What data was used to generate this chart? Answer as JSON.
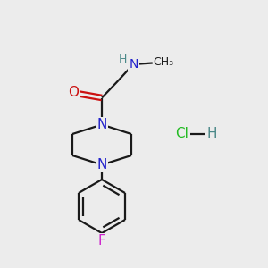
{
  "bg_color": "#ececec",
  "bond_color": "#1a1a1a",
  "N_color": "#2222cc",
  "O_color": "#cc1111",
  "F_color": "#cc22cc",
  "H_color": "#4a8888",
  "Cl_color": "#22bb22",
  "line_width": 1.6,
  "font_size": 10,
  "figsize": [
    3.0,
    3.0
  ],
  "dpi": 100,
  "xlim": [
    0,
    10
  ],
  "ylim": [
    0,
    10
  ]
}
